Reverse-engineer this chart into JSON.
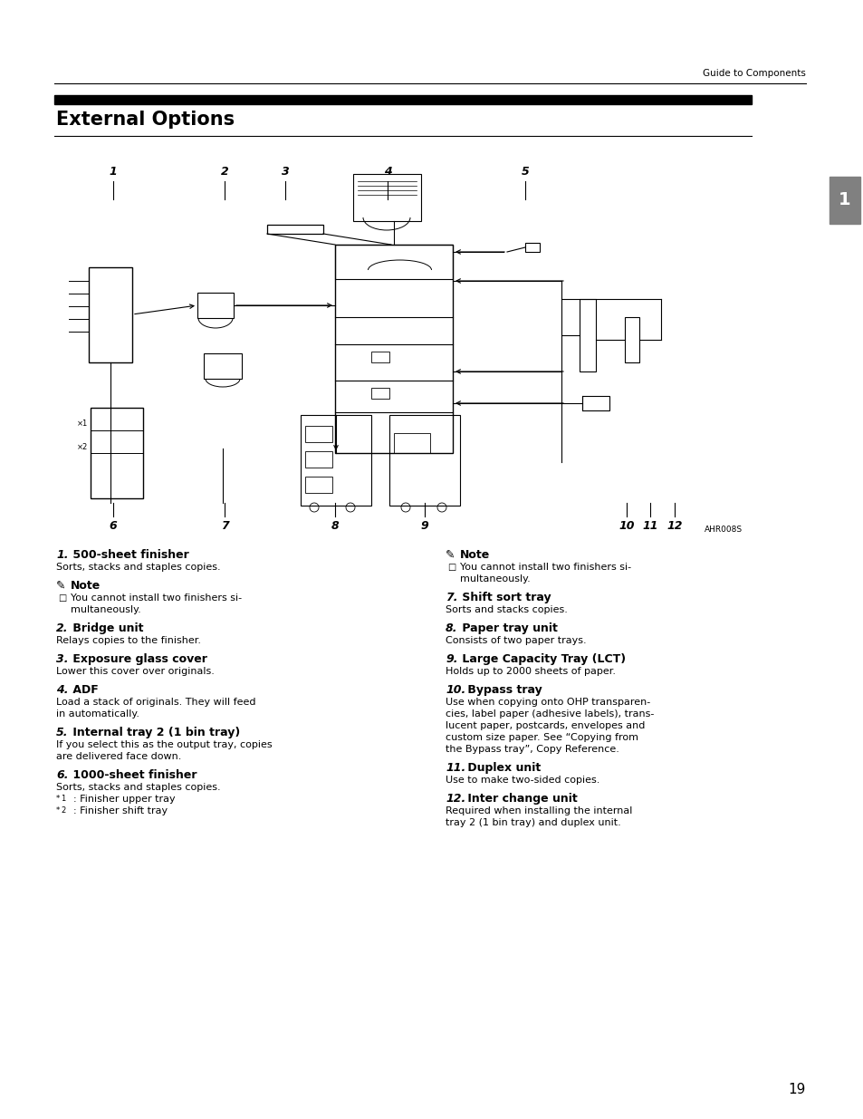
{
  "page_title": "Guide to Components",
  "section_title": "External Options",
  "background_color": "#ffffff",
  "text_color": "#000000",
  "page_number": "19",
  "tab_label": "1",
  "tab_color": "#808080",
  "diagram_code": "AHR008S",
  "left_col_items": [
    {
      "num": "1.",
      "title": "500-sheet finisher",
      "body": [
        "Sorts, stacks and staples copies."
      ],
      "note": [
        "You cannot install two finishers si-",
        "multaneously."
      ]
    },
    {
      "num": "2.",
      "title": "Bridge unit",
      "body": [
        "Relays copies to the finisher."
      ],
      "note": []
    },
    {
      "num": "3.",
      "title": "Exposure glass cover",
      "body": [
        "Lower this cover over originals."
      ],
      "note": []
    },
    {
      "num": "4.",
      "title": "ADF",
      "body": [
        "Load a stack of originals. They will feed",
        "in automatically."
      ],
      "note": []
    },
    {
      "num": "5.",
      "title": "Internal tray 2 (1 bin tray)",
      "body": [
        "If you select this as the output tray, copies",
        "are delivered face down."
      ],
      "note": []
    },
    {
      "num": "6.",
      "title": "1000-sheet finisher",
      "body": [
        "Sorts, stacks and staples copies.",
        "*1  : Finisher upper tray",
        "*2  : Finisher shift tray"
      ],
      "note": [],
      "footnote_lines": [
        1,
        2
      ]
    }
  ],
  "right_col_items": [
    {
      "num": "",
      "title": "",
      "body": [],
      "note": [
        "You cannot install two finishers si-",
        "multaneously."
      ],
      "note_only": true
    },
    {
      "num": "7.",
      "title": "Shift sort tray",
      "body": [
        "Sorts and stacks copies."
      ],
      "note": []
    },
    {
      "num": "8.",
      "title": "Paper tray unit",
      "body": [
        "Consists of two paper trays."
      ],
      "note": []
    },
    {
      "num": "9.",
      "title": "Large Capacity Tray (LCT)",
      "body": [
        "Holds up to 2000 sheets of paper."
      ],
      "note": []
    },
    {
      "num": "10.",
      "title": "Bypass tray",
      "body": [
        "Use when copying onto OHP transparen-",
        "cies, label paper (adhesive labels), trans-",
        "lucent paper, postcards, envelopes and",
        "custom size paper. See “Copying from",
        "the Bypass tray”, Copy Reference."
      ],
      "note": []
    },
    {
      "num": "11.",
      "title": "Duplex unit",
      "body": [
        "Use to make two-sided copies."
      ],
      "note": []
    },
    {
      "num": "12.",
      "title": "Inter change unit",
      "body": [
        "Required when installing the internal",
        "tray 2 (1 bin tray) and duplex unit."
      ],
      "note": []
    }
  ]
}
